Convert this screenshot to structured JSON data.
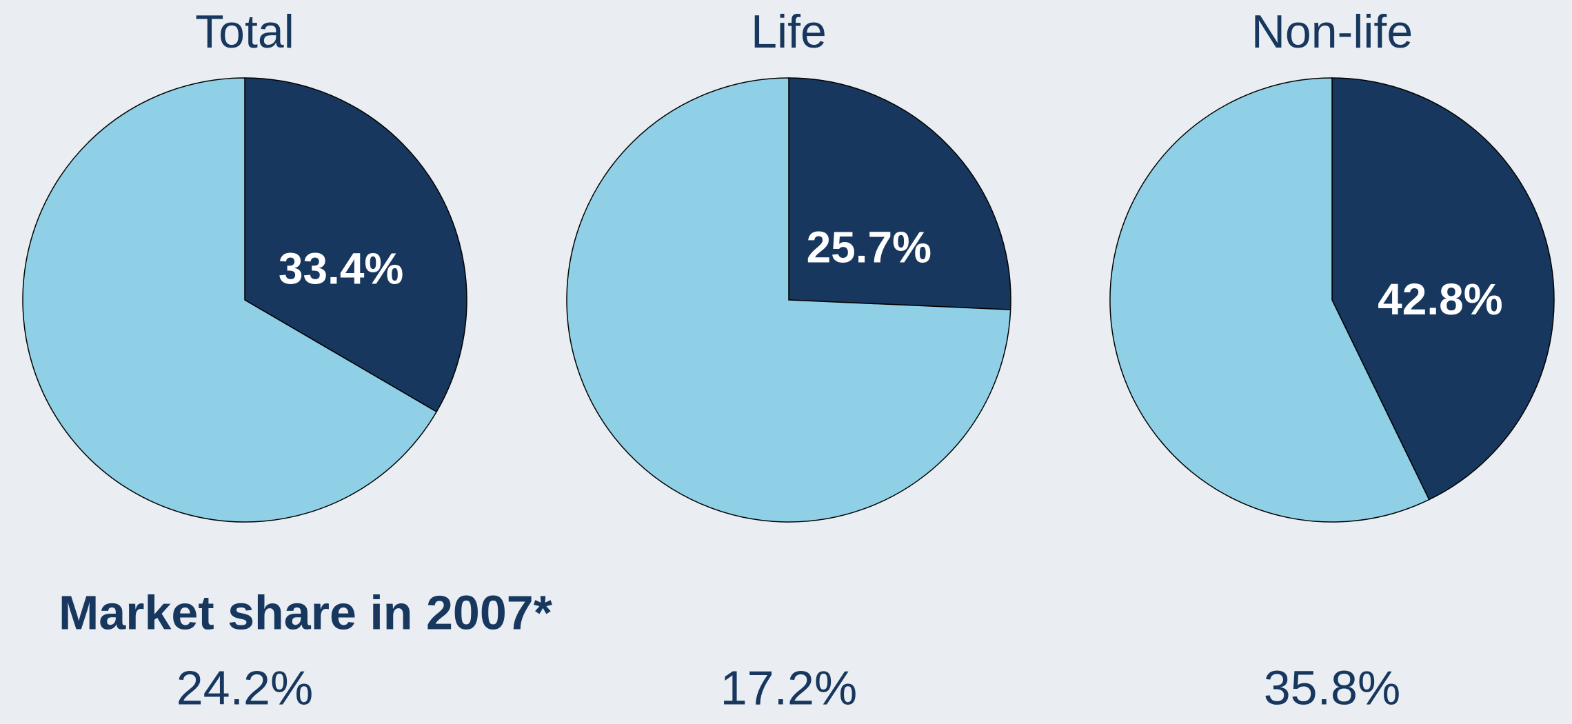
{
  "chart_data": [
    {
      "type": "pie",
      "title": "Total",
      "values": [
        33.4,
        66.6
      ],
      "value_labels": [
        "33.4%",
        null
      ],
      "colors": [
        "#17375e",
        "#8fd0e6"
      ]
    },
    {
      "type": "pie",
      "title": "Life",
      "values": [
        25.7,
        74.3
      ],
      "value_labels": [
        "25.7%",
        null
      ],
      "colors": [
        "#17375e",
        "#8fd0e6"
      ]
    },
    {
      "type": "pie",
      "title": "Non-life",
      "values": [
        42.8,
        57.2
      ],
      "value_labels": [
        "42.8%",
        null
      ],
      "colors": [
        "#17375e",
        "#8fd0e6"
      ]
    }
  ],
  "footer": {
    "title": "Market share in 2007*",
    "values": [
      "24.2%",
      "17.2%",
      "35.8%"
    ]
  }
}
